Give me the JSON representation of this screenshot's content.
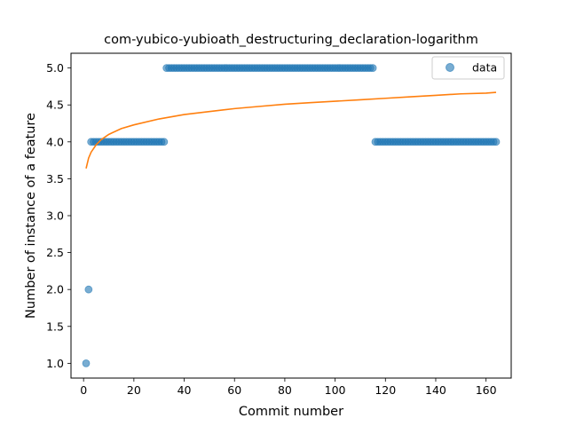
{
  "chart_data": {
    "type": "scatter",
    "title": "com-yubico-yubioath_destructuring_declaration-logarithm",
    "xlabel": "Commit number",
    "ylabel": "Number of instance of a feature",
    "xlim": [
      -5,
      170
    ],
    "ylim": [
      0.8,
      5.2
    ],
    "xticks": [
      0,
      20,
      40,
      60,
      80,
      100,
      120,
      140,
      160
    ],
    "yticks": [
      1.0,
      1.5,
      2.0,
      2.5,
      3.0,
      3.5,
      4.0,
      4.5,
      5.0
    ],
    "xtick_labels": [
      "0",
      "20",
      "40",
      "60",
      "80",
      "100",
      "120",
      "140",
      "160"
    ],
    "ytick_labels": [
      "1.0",
      "1.5",
      "2.0",
      "2.5",
      "3.0",
      "3.5",
      "4.0",
      "4.5",
      "5.0"
    ],
    "grid": false,
    "legend_position": "top-right",
    "series": [
      {
        "name": "data",
        "kind": "scatter",
        "color": "#1f77b4",
        "points": [
          [
            1,
            1
          ],
          [
            2,
            2
          ],
          [
            3,
            4
          ],
          [
            4,
            4
          ],
          [
            5,
            4
          ],
          [
            6,
            4
          ],
          [
            7,
            4
          ],
          [
            8,
            4
          ],
          [
            9,
            4
          ],
          [
            10,
            4
          ],
          [
            11,
            4
          ],
          [
            12,
            4
          ],
          [
            13,
            4
          ],
          [
            14,
            4
          ],
          [
            15,
            4
          ],
          [
            16,
            4
          ],
          [
            17,
            4
          ],
          [
            18,
            4
          ],
          [
            19,
            4
          ],
          [
            20,
            4
          ],
          [
            21,
            4
          ],
          [
            22,
            4
          ],
          [
            23,
            4
          ],
          [
            24,
            4
          ],
          [
            25,
            4
          ],
          [
            26,
            4
          ],
          [
            27,
            4
          ],
          [
            28,
            4
          ],
          [
            29,
            4
          ],
          [
            30,
            4
          ],
          [
            31,
            4
          ],
          [
            32,
            4
          ],
          [
            33,
            5
          ],
          [
            34,
            5
          ],
          [
            35,
            5
          ],
          [
            36,
            5
          ],
          [
            37,
            5
          ],
          [
            38,
            5
          ],
          [
            39,
            5
          ],
          [
            40,
            5
          ],
          [
            41,
            5
          ],
          [
            42,
            5
          ],
          [
            43,
            5
          ],
          [
            44,
            5
          ],
          [
            45,
            5
          ],
          [
            46,
            5
          ],
          [
            47,
            5
          ],
          [
            48,
            5
          ],
          [
            49,
            5
          ],
          [
            50,
            5
          ],
          [
            51,
            5
          ],
          [
            52,
            5
          ],
          [
            53,
            5
          ],
          [
            54,
            5
          ],
          [
            55,
            5
          ],
          [
            56,
            5
          ],
          [
            57,
            5
          ],
          [
            58,
            5
          ],
          [
            59,
            5
          ],
          [
            60,
            5
          ],
          [
            61,
            5
          ],
          [
            62,
            5
          ],
          [
            63,
            5
          ],
          [
            64,
            5
          ],
          [
            65,
            5
          ],
          [
            66,
            5
          ],
          [
            67,
            5
          ],
          [
            68,
            5
          ],
          [
            69,
            5
          ],
          [
            70,
            5
          ],
          [
            71,
            5
          ],
          [
            72,
            5
          ],
          [
            73,
            5
          ],
          [
            74,
            5
          ],
          [
            75,
            5
          ],
          [
            76,
            5
          ],
          [
            77,
            5
          ],
          [
            78,
            5
          ],
          [
            79,
            5
          ],
          [
            80,
            5
          ],
          [
            81,
            5
          ],
          [
            82,
            5
          ],
          [
            83,
            5
          ],
          [
            84,
            5
          ],
          [
            85,
            5
          ],
          [
            86,
            5
          ],
          [
            87,
            5
          ],
          [
            88,
            5
          ],
          [
            89,
            5
          ],
          [
            90,
            5
          ],
          [
            91,
            5
          ],
          [
            92,
            5
          ],
          [
            93,
            5
          ],
          [
            94,
            5
          ],
          [
            95,
            5
          ],
          [
            96,
            5
          ],
          [
            97,
            5
          ],
          [
            98,
            5
          ],
          [
            99,
            5
          ],
          [
            100,
            5
          ],
          [
            101,
            5
          ],
          [
            102,
            5
          ],
          [
            103,
            5
          ],
          [
            104,
            5
          ],
          [
            105,
            5
          ],
          [
            106,
            5
          ],
          [
            107,
            5
          ],
          [
            108,
            5
          ],
          [
            109,
            5
          ],
          [
            110,
            5
          ],
          [
            111,
            5
          ],
          [
            112,
            5
          ],
          [
            113,
            5
          ],
          [
            114,
            5
          ],
          [
            115,
            5
          ],
          [
            116,
            4
          ],
          [
            117,
            4
          ],
          [
            118,
            4
          ],
          [
            119,
            4
          ],
          [
            120,
            4
          ],
          [
            121,
            4
          ],
          [
            122,
            4
          ],
          [
            123,
            4
          ],
          [
            124,
            4
          ],
          [
            125,
            4
          ],
          [
            126,
            4
          ],
          [
            127,
            4
          ],
          [
            128,
            4
          ],
          [
            129,
            4
          ],
          [
            130,
            4
          ],
          [
            131,
            4
          ],
          [
            132,
            4
          ],
          [
            133,
            4
          ],
          [
            134,
            4
          ],
          [
            135,
            4
          ],
          [
            136,
            4
          ],
          [
            137,
            4
          ],
          [
            138,
            4
          ],
          [
            139,
            4
          ],
          [
            140,
            4
          ],
          [
            141,
            4
          ],
          [
            142,
            4
          ],
          [
            143,
            4
          ],
          [
            144,
            4
          ],
          [
            145,
            4
          ],
          [
            146,
            4
          ],
          [
            147,
            4
          ],
          [
            148,
            4
          ],
          [
            149,
            4
          ],
          [
            150,
            4
          ],
          [
            151,
            4
          ],
          [
            152,
            4
          ],
          [
            153,
            4
          ],
          [
            154,
            4
          ],
          [
            155,
            4
          ],
          [
            156,
            4
          ],
          [
            157,
            4
          ],
          [
            158,
            4
          ],
          [
            159,
            4
          ],
          [
            160,
            4
          ],
          [
            161,
            4
          ],
          [
            162,
            4
          ],
          [
            163,
            4
          ],
          [
            164,
            4
          ]
        ]
      },
      {
        "kind": "line",
        "color": "#ff7f0e",
        "points": [
          [
            1,
            3.64
          ],
          [
            2,
            3.78
          ],
          [
            3,
            3.86
          ],
          [
            5,
            3.96
          ],
          [
            7,
            4.03
          ],
          [
            10,
            4.1
          ],
          [
            15,
            4.18
          ],
          [
            20,
            4.23
          ],
          [
            30,
            4.31
          ],
          [
            40,
            4.37
          ],
          [
            50,
            4.41
          ],
          [
            60,
            4.45
          ],
          [
            70,
            4.48
          ],
          [
            80,
            4.51
          ],
          [
            90,
            4.53
          ],
          [
            100,
            4.55
          ],
          [
            110,
            4.57
          ],
          [
            120,
            4.59
          ],
          [
            130,
            4.61
          ],
          [
            140,
            4.63
          ],
          [
            150,
            4.65
          ],
          [
            160,
            4.66
          ],
          [
            164,
            4.67
          ]
        ]
      }
    ]
  }
}
